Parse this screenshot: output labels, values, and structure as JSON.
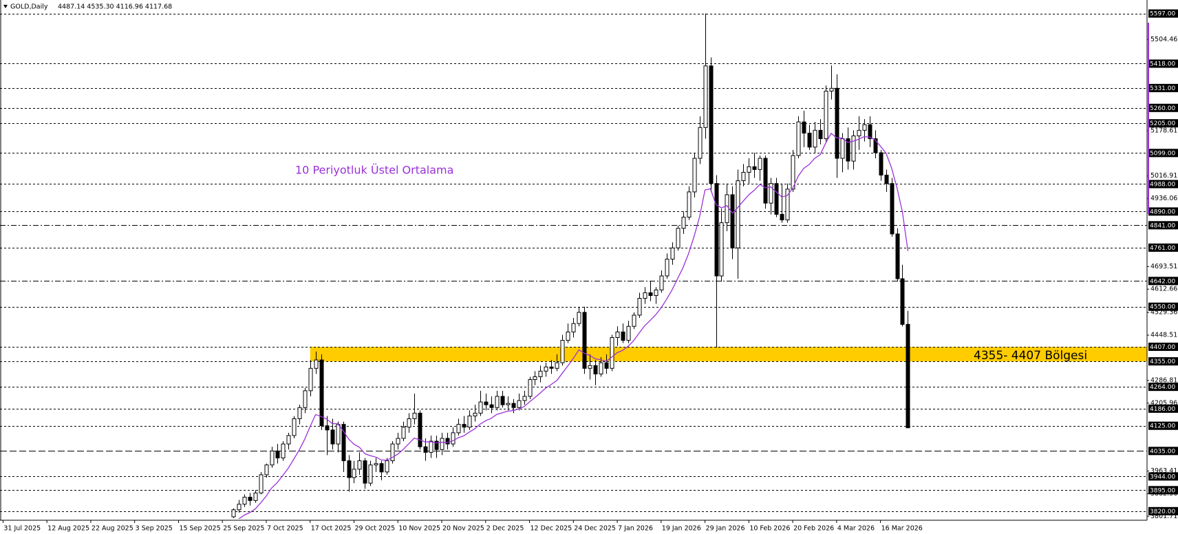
{
  "chart_data": {
    "type": "candlestick",
    "title": "GOLD,Daily",
    "subtitle": "4487.14 4535.30 4116.96 4117.68",
    "up_color": "#ffffff",
    "down_color": "#000000",
    "outline_color": "#000000",
    "categories": [
      "31 Jul 2025",
      null,
      null,
      null,
      null,
      null,
      null,
      null,
      "12 Aug 2025",
      null,
      null,
      null,
      null,
      null,
      null,
      null,
      "22 Aug 2025",
      null,
      null,
      null,
      null,
      null,
      null,
      null,
      "3 Sep 2025",
      null,
      null,
      null,
      null,
      null,
      null,
      null,
      "15 Sep 2025",
      null,
      null,
      null,
      null,
      null,
      null,
      null,
      "25 Sep 2025",
      null,
      null,
      null,
      null,
      null,
      null,
      null,
      "7 Oct 2025",
      null,
      null,
      null,
      null,
      null,
      null,
      null,
      "17 Oct 2025",
      null,
      null,
      null,
      null,
      null,
      null,
      null,
      "29 Oct 2025",
      null,
      null,
      null,
      null,
      null,
      null,
      null,
      "10 Nov 2025",
      null,
      null,
      null,
      null,
      null,
      null,
      null,
      "20 Nov 2025",
      null,
      null,
      null,
      null,
      null,
      null,
      null,
      "2 Dec 2025",
      null,
      null,
      null,
      null,
      null,
      null,
      null,
      "12 Dec 2025",
      null,
      null,
      null,
      null,
      null,
      null,
      null,
      "24 Dec 2025",
      null,
      null,
      null,
      null,
      null,
      null,
      null,
      "7 Jan 2026",
      null,
      null,
      null,
      null,
      null,
      null,
      null,
      "19 Jan 2026",
      null,
      null,
      null,
      null,
      null,
      null,
      null,
      "29 Jan 2026",
      null,
      null,
      null,
      null,
      null,
      null,
      null,
      "10 Feb 2026",
      null,
      null,
      null,
      null,
      null,
      null,
      null,
      "20 Feb 2026",
      null,
      null,
      null,
      null,
      null,
      null,
      null,
      "4 Mar 2026",
      null,
      null,
      null,
      null,
      null,
      null,
      null,
      "16 Mar 2026",
      null,
      null,
      null,
      null,
      null
    ],
    "open": [
      null,
      null,
      null,
      null,
      null,
      null,
      null,
      null,
      null,
      null,
      null,
      null,
      null,
      null,
      null,
      null,
      null,
      null,
      null,
      null,
      null,
      null,
      null,
      null,
      null,
      null,
      null,
      null,
      null,
      null,
      null,
      null,
      null,
      null,
      null,
      null,
      null,
      null,
      null,
      null,
      null,
      null,
      3800,
      3825,
      3845,
      3870,
      3858,
      3885,
      3950,
      3985,
      4035,
      4010,
      4060,
      4090,
      4150,
      4190,
      4250,
      4330,
      4360,
      4125,
      4110,
      4060,
      4130,
      4000,
      3940,
      3970,
      4000,
      3920,
      3985,
      3990,
      3960,
      4000,
      4060,
      4080,
      4120,
      4150,
      4170,
      4050,
      4030,
      4070,
      4040,
      4080,
      4060,
      4100,
      4130,
      4120,
      4160,
      4170,
      4210,
      4200,
      4190,
      4230,
      4200,
      4205,
      4190,
      4215,
      4230,
      4290,
      4300,
      4320,
      4335,
      4330,
      4350,
      4430,
      4460,
      4490,
      4530,
      4330,
      4340,
      4310,
      4350,
      4330,
      4440,
      4460,
      4430,
      4480,
      4520,
      4580,
      4600,
      4590,
      4610,
      4660,
      4720,
      4760,
      4830,
      4870,
      4960,
      5080,
      5190,
      5410,
      4990,
      4660,
      4850,
      4950,
      4760,
      5000,
      5030,
      5050,
      5040,
      5080,
      4920,
      4990,
      4880,
      4860,
      4970,
      5090,
      5210,
      5170,
      5120,
      5180,
      5150,
      5320,
      5330,
      5080,
      5150,
      5070,
      5160,
      5180,
      5200,
      5150,
      5100,
      5020,
      4990,
      4810,
      4650,
      4487.14
    ],
    "high": [
      null,
      null,
      null,
      null,
      null,
      null,
      null,
      null,
      null,
      null,
      null,
      null,
      null,
      null,
      null,
      null,
      null,
      null,
      null,
      null,
      null,
      null,
      null,
      null,
      null,
      null,
      null,
      null,
      null,
      null,
      null,
      null,
      null,
      null,
      null,
      null,
      null,
      null,
      null,
      null,
      null,
      null,
      3830,
      3860,
      3880,
      3885,
      3895,
      3960,
      3990,
      4050,
      4060,
      4070,
      4100,
      4160,
      4200,
      4260,
      4360,
      4390,
      4380,
      4160,
      4150,
      4140,
      4140,
      4020,
      4000,
      4030,
      4010,
      4000,
      4010,
      4000,
      4010,
      4070,
      4100,
      4140,
      4170,
      4240,
      4180,
      4080,
      4090,
      4090,
      4100,
      4100,
      4120,
      4150,
      4160,
      4180,
      4200,
      4250,
      4240,
      4230,
      4250,
      4250,
      4230,
      4220,
      4240,
      4250,
      4300,
      4320,
      4340,
      4350,
      4360,
      4380,
      4450,
      4490,
      4510,
      4550,
      4550,
      4380,
      4360,
      4370,
      4380,
      4450,
      4480,
      4490,
      4500,
      4530,
      4600,
      4620,
      4640,
      4620,
      4680,
      4740,
      4780,
      4840,
      4890,
      4980,
      5100,
      5230,
      5597,
      5440,
      5020,
      4900,
      4990,
      4980,
      5040,
      5060,
      5080,
      5100,
      5090,
      5090,
      5010,
      5010,
      4990,
      4990,
      5110,
      5230,
      5250,
      5200,
      5210,
      5220,
      5340,
      5412,
      5380,
      5170,
      5190,
      5180,
      5230,
      5220,
      5230,
      5180,
      5110,
      5040,
      5010,
      4830,
      4700,
      4535.3
    ],
    "low": [
      null,
      null,
      null,
      null,
      null,
      null,
      null,
      null,
      null,
      null,
      null,
      null,
      null,
      null,
      null,
      null,
      null,
      null,
      null,
      null,
      null,
      null,
      null,
      null,
      null,
      null,
      null,
      null,
      null,
      null,
      null,
      null,
      null,
      null,
      null,
      null,
      null,
      null,
      null,
      null,
      null,
      null,
      3795,
      3815,
      3835,
      3840,
      3850,
      3880,
      3940,
      3975,
      3990,
      4000,
      4040,
      4080,
      4130,
      4170,
      4230,
      4310,
      4110,
      4020,
      4040,
      4030,
      3960,
      3890,
      3920,
      3950,
      3900,
      3910,
      3960,
      3930,
      3950,
      3990,
      4040,
      4070,
      4100,
      4130,
      4040,
      4000,
      4010,
      4010,
      4020,
      4040,
      4050,
      4090,
      4100,
      4110,
      4140,
      4160,
      4180,
      4170,
      4180,
      4190,
      4180,
      4170,
      4180,
      4200,
      4220,
      4270,
      4280,
      4300,
      4310,
      4320,
      4340,
      4420,
      4440,
      4480,
      4310,
      4290,
      4270,
      4300,
      4310,
      4320,
      4410,
      4420,
      4420,
      4470,
      4510,
      4560,
      4570,
      4560,
      4600,
      4650,
      4700,
      4750,
      4810,
      4860,
      4940,
      5060,
      5150,
      4960,
      4404,
      4640,
      4820,
      4720,
      4650,
      4980,
      4990,
      5010,
      5000,
      4900,
      4880,
      4870,
      4850,
      4850,
      4960,
      5080,
      5120,
      5110,
      5100,
      5130,
      5140,
      5290,
      5010,
      5030,
      5040,
      5040,
      5110,
      5140,
      5120,
      5080,
      5000,
      4960,
      4800,
      4640,
      4480,
      4116.96
    ],
    "close": [
      null,
      null,
      null,
      null,
      null,
      null,
      null,
      null,
      null,
      null,
      null,
      null,
      null,
      null,
      null,
      null,
      null,
      null,
      null,
      null,
      null,
      null,
      null,
      null,
      null,
      null,
      null,
      null,
      null,
      null,
      null,
      null,
      null,
      null,
      null,
      null,
      null,
      null,
      null,
      null,
      null,
      null,
      3825,
      3845,
      3870,
      3858,
      3885,
      3950,
      3985,
      4035,
      4010,
      4060,
      4090,
      4150,
      4190,
      4250,
      4330,
      4360,
      4125,
      4110,
      4060,
      4130,
      4000,
      3940,
      3970,
      4000,
      3920,
      3985,
      3990,
      3960,
      4000,
      4060,
      4080,
      4120,
      4150,
      4170,
      4050,
      4030,
      4070,
      4040,
      4080,
      4060,
      4100,
      4130,
      4120,
      4160,
      4170,
      4210,
      4200,
      4190,
      4230,
      4200,
      4205,
      4190,
      4215,
      4230,
      4290,
      4300,
      4320,
      4335,
      4330,
      4350,
      4430,
      4460,
      4490,
      4530,
      4330,
      4340,
      4310,
      4350,
      4330,
      4440,
      4460,
      4430,
      4480,
      4520,
      4580,
      4600,
      4590,
      4610,
      4660,
      4720,
      4760,
      4830,
      4870,
      4960,
      5080,
      5190,
      5410,
      4990,
      4660,
      4850,
      4950,
      4760,
      5000,
      5030,
      5050,
      5040,
      5080,
      4920,
      4990,
      4880,
      4860,
      4970,
      5090,
      5210,
      5170,
      5120,
      5180,
      5150,
      5320,
      5330,
      5080,
      5150,
      5070,
      5160,
      5180,
      5200,
      5150,
      5100,
      5020,
      4990,
      4810,
      4650,
      4487,
      4117.68
    ],
    "ema": {
      "label": "10 Periyotluk Üstel Ortalama",
      "color": "#9b30d9",
      "values": [
        null,
        null,
        null,
        null,
        null,
        null,
        null,
        null,
        null,
        null,
        null,
        null,
        null,
        null,
        null,
        null,
        null,
        null,
        null,
        null,
        null,
        null,
        null,
        null,
        null,
        null,
        null,
        null,
        null,
        null,
        null,
        null,
        null,
        null,
        null,
        null,
        null,
        null,
        null,
        null,
        null,
        null,
        3780,
        3792,
        3806,
        3815,
        3828,
        3850,
        3874,
        3903,
        3922,
        3947,
        3973,
        4005,
        4038,
        4076,
        4122,
        4165,
        4158,
        4149,
        4133,
        4132,
        4108,
        4078,
        4059,
        4048,
        4025,
        4018,
        4013,
        4003,
        4002,
        4012,
        4024,
        4041,
        4061,
        4081,
        4075,
        4067,
        4068,
        4063,
        4066,
        4065,
        4071,
        4082,
        4089,
        4102,
        4114,
        4131,
        4143,
        4151,
        4165,
        4171,
        4177,
        4179,
        4185,
        4193,
        4210,
        4226,
        4243,
        4260,
        4273,
        4287,
        4313,
        4339,
        4366,
        4396,
        4384,
        4376,
        4364,
        4361,
        4355,
        4370,
        4386,
        4394,
        4409,
        4429,
        4456,
        4482,
        4501,
        4521,
        4546,
        4577,
        4610,
        4650,
        4690,
        4739,
        4800,
        4870,
        4967,
        4971,
        4915,
        4903,
        4911,
        4884,
        4905,
        4928,
        4950,
        4966,
        4987,
        4975,
        4978,
        4960,
        4942,
        4947,
        4973,
        5016,
        5044,
        5058,
        5080,
        5093,
        5134,
        5169,
        5153,
        5152,
        5137,
        5141,
        5148,
        5157,
        5156,
        5146,
        5123,
        5099,
        5047,
        4976,
        4888,
        4749
      ]
    },
    "zone": {
      "low": 4355,
      "high": 4407,
      "label": "4355- 4407 Bölgesi",
      "color": "#ffcc00"
    },
    "ylim": [
      3795,
      5633
    ],
    "yticks": [
      5504.46,
      5178.61,
      5016.91,
      4936.06,
      4693.51,
      4612.66,
      4529.36,
      4448.51,
      4286.81,
      4205.96,
      3963.41,
      3882.56,
      3801.71
    ],
    "levels": [
      {
        "value": 5597,
        "label": "5597.00",
        "style": "dash"
      },
      {
        "value": 5418,
        "label": "5418.00",
        "style": "dash"
      },
      {
        "value": 5331,
        "label": "5331.00",
        "style": "dash"
      },
      {
        "value": 5260,
        "label": "5260.00",
        "style": "dash"
      },
      {
        "value": 5205,
        "label": "5205.00",
        "style": "dash"
      },
      {
        "value": 5099,
        "label": "5099.00",
        "style": "dash"
      },
      {
        "value": 4988,
        "label": "4988.00",
        "style": "dash"
      },
      {
        "value": 4890,
        "label": "4890.00",
        "style": "dash"
      },
      {
        "value": 4841,
        "label": "4841.00",
        "style": "dash-dot"
      },
      {
        "value": 4761,
        "label": "4761.00",
        "style": "dash"
      },
      {
        "value": 4642,
        "label": "4642.00",
        "style": "dash-dot"
      },
      {
        "value": 4550,
        "label": "4550.00",
        "style": "dash"
      },
      {
        "value": 4407,
        "label": "4407.00",
        "style": "dash"
      },
      {
        "value": 4355,
        "label": "4355.00",
        "style": "dash"
      },
      {
        "value": 4264,
        "label": "4264.00",
        "style": "dash"
      },
      {
        "value": 4186,
        "label": "4186.00",
        "style": "dash"
      },
      {
        "value": 4125,
        "label": "4125.00",
        "style": "dash"
      },
      {
        "value": 4035,
        "label": "4035.00",
        "style": "long-dash"
      },
      {
        "value": 3944,
        "label": "3944.00",
        "style": "dash"
      },
      {
        "value": 3895,
        "label": "3895.00",
        "style": "dash"
      },
      {
        "value": 3820,
        "label": "3820.00",
        "style": "dash"
      }
    ]
  }
}
